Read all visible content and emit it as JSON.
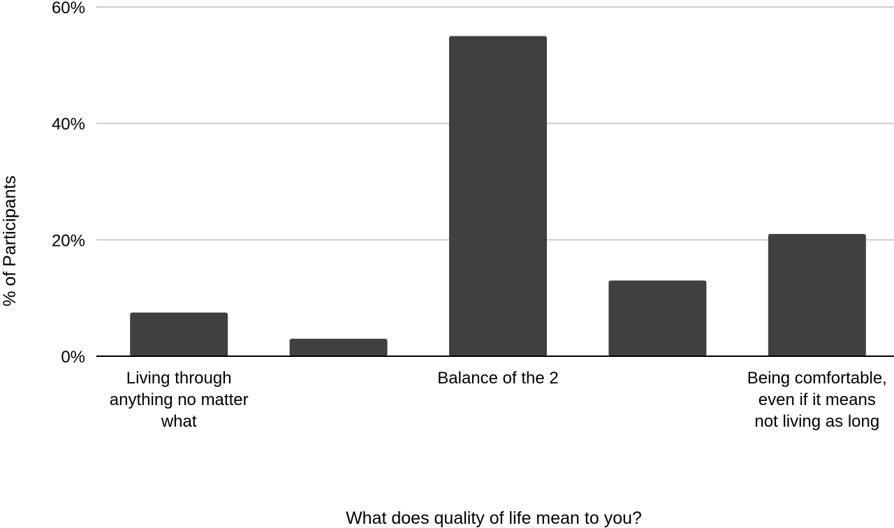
{
  "chart_data": {
    "type": "bar",
    "categories": [
      "Living through anything no matter what",
      "",
      "Balance of the 2",
      "",
      "Being comfortable, even if it means not living as long"
    ],
    "values": [
      7.5,
      3,
      55,
      13,
      21
    ],
    "xlabel": "What does quality of life mean to you?",
    "ylabel": "% of Participants",
    "ylim": [
      0,
      60
    ],
    "yticks": [
      "0%",
      "20%",
      "40%",
      "60%"
    ],
    "grid": true,
    "bar_color": "#404040",
    "grid_color": "#cccccc",
    "axis_color": "#000000"
  }
}
